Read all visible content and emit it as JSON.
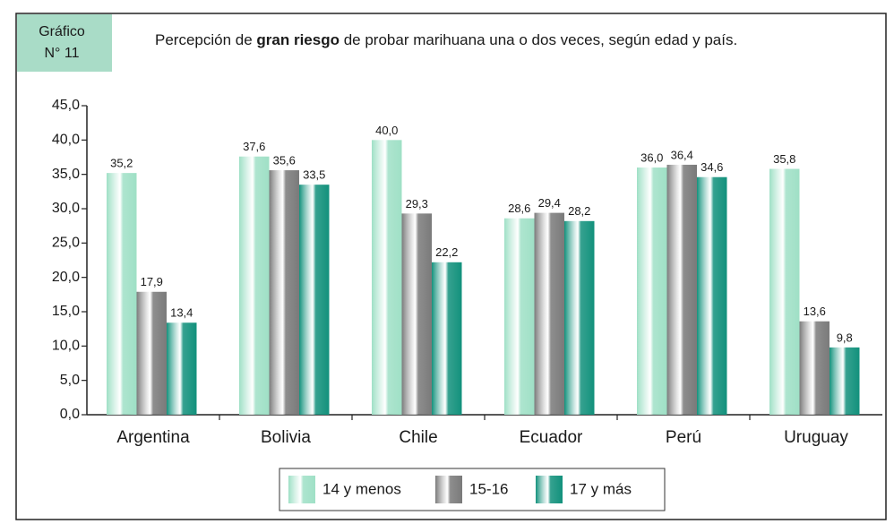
{
  "chart_data": {
    "type": "bar",
    "badge": [
      "Gráfico",
      "N° 11"
    ],
    "title_parts": [
      "Percepción de ",
      "gran riesgo",
      " de probar marihuana una o dos veces, según edad y país."
    ],
    "categories": [
      "Argentina",
      "Bolivia",
      "Chile",
      "Ecuador",
      "Perú",
      "Uruguay"
    ],
    "series": [
      {
        "name": "14 y menos",
        "color": "#9fe0c6",
        "values": [
          35.2,
          37.6,
          40.0,
          28.6,
          36.0,
          35.8
        ],
        "value_labels": [
          "35,2",
          "37,6",
          "40,0",
          "28,6",
          "36,0",
          "35,8"
        ]
      },
      {
        "name": "15-16",
        "color": "#7a7a7a",
        "values": [
          17.9,
          35.6,
          29.3,
          29.4,
          36.4,
          13.6
        ],
        "value_labels": [
          "17,9",
          "35,6",
          "29,3",
          "29,4",
          "36,4",
          "13,6"
        ]
      },
      {
        "name": "17 y más",
        "color": "#12917c",
        "values": [
          13.4,
          33.5,
          22.2,
          28.2,
          34.6,
          9.8
        ],
        "value_labels": [
          "13,4",
          "33,5",
          "22,2",
          "28,2",
          "34,6",
          "9,8"
        ]
      }
    ],
    "ylim": [
      0,
      45
    ],
    "yticks": [
      {
        "value": 0,
        "label": "0,0"
      },
      {
        "value": 5,
        "label": "5,0"
      },
      {
        "value": 10,
        "label": "10,0"
      },
      {
        "value": 15,
        "label": "15,0"
      },
      {
        "value": 20,
        "label": "20,0"
      },
      {
        "value": 25,
        "label": "25,0"
      },
      {
        "value": 30,
        "label": "30,0"
      },
      {
        "value": 35,
        "label": "35,0"
      },
      {
        "value": 40,
        "label": "40,0"
      },
      {
        "value": 45,
        "label": "45,0"
      }
    ]
  }
}
